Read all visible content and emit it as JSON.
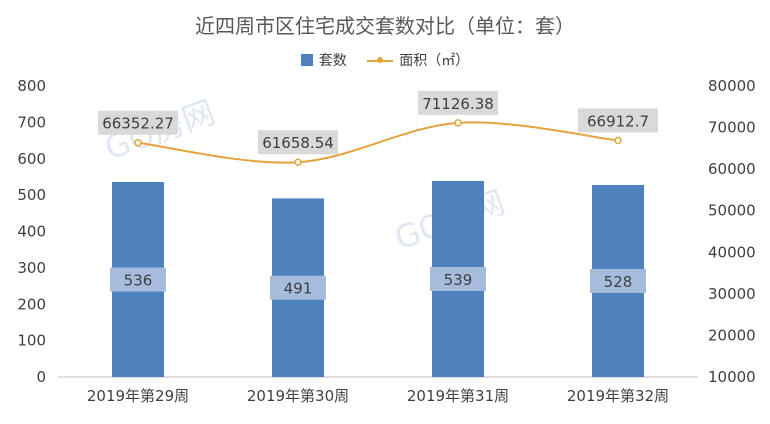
{
  "chart_data": {
    "type": "bar",
    "title": "近四周市区住宅成交套数对比（单位：套）",
    "categories": [
      "2019年第29周",
      "2019年第30周",
      "2019年第31周",
      "2019年第32周"
    ],
    "series": [
      {
        "name": "套数",
        "type": "bar",
        "axis": "left",
        "values": [
          536,
          491,
          539,
          528
        ],
        "labels": [
          "536",
          "491",
          "539",
          "528"
        ],
        "color": "#4f81bd"
      },
      {
        "name": "面积（㎡）",
        "type": "line",
        "axis": "right",
        "values": [
          66352.27,
          61658.54,
          71126.38,
          66912.7
        ],
        "labels": [
          "66352.27",
          "61658.54",
          "71126.38",
          "66912.7"
        ],
        "color": "#e3a43c"
      }
    ],
    "y_left": {
      "ylim": [
        0,
        800
      ],
      "ticks": [
        "0",
        "100",
        "200",
        "300",
        "400",
        "500",
        "600",
        "700",
        "800"
      ]
    },
    "y_right": {
      "ylim": [
        10000,
        80000
      ],
      "ticks": [
        "10000",
        "20000",
        "30000",
        "40000",
        "50000",
        "60000",
        "70000",
        "80000"
      ]
    },
    "grid": false,
    "legend_position": "top"
  },
  "watermark": "GO房网"
}
